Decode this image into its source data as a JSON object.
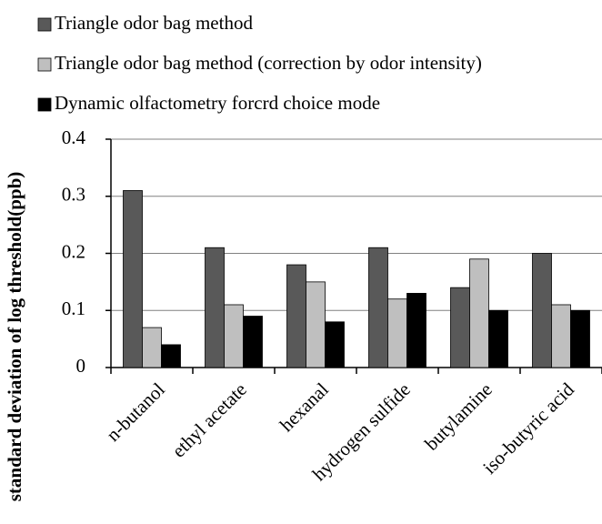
{
  "chart_data": {
    "type": "bar",
    "y_label": "standard deviation of log threshold(ppb)",
    "categories": [
      "n-butanol",
      "ethyl acetate",
      "hexanal",
      "hydrogen sulfide",
      "butylamine",
      "iso-butyric acid"
    ],
    "series": [
      {
        "name": "Triangle odor bag method",
        "color": "#595959",
        "values": [
          0.31,
          0.21,
          0.18,
          0.21,
          0.14,
          0.2
        ]
      },
      {
        "name": "Triangle odor bag method (correction by odor intensity)",
        "color": "#bfbfbf",
        "values": [
          0.07,
          0.11,
          0.15,
          0.12,
          0.19,
          0.11
        ]
      },
      {
        "name": "Dynamic olfactometry forcrd choice mode",
        "color": "#000000",
        "values": [
          0.04,
          0.09,
          0.08,
          0.13,
          0.1,
          0.1
        ]
      }
    ],
    "ylim": [
      0,
      0.4
    ],
    "yticks": [
      0,
      0.1,
      0.2,
      0.3,
      0.4
    ],
    "grid": true,
    "legend": "top-left"
  }
}
